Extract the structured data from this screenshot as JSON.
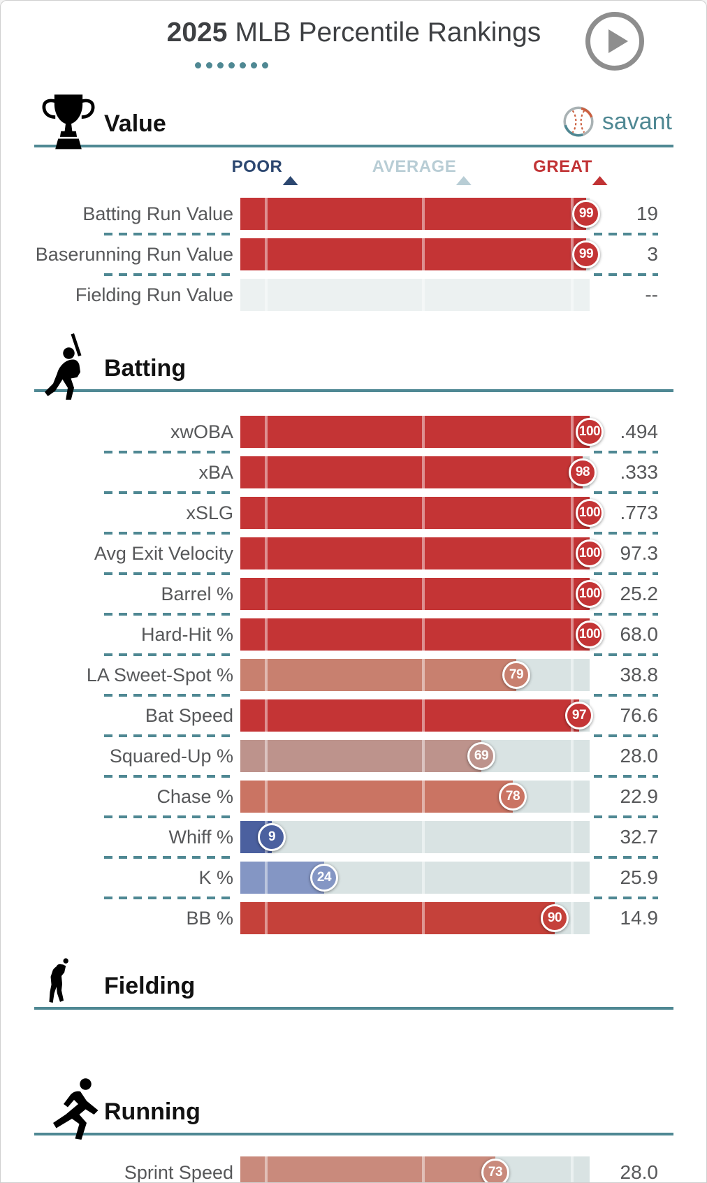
{
  "header": {
    "title_year": "2025",
    "title_rest": "MLB Percentile Rankings",
    "dots_count": 7
  },
  "branding": {
    "wordmark": "savant"
  },
  "legend": {
    "poor_label": "POOR",
    "average_label": "AVERAGE",
    "great_label": "GREAT",
    "poor_color": "#2c4770",
    "average_color": "#b8cdd5",
    "great_color": "#c13335",
    "positions_pct": {
      "poor": 7,
      "average": 52,
      "great": 94.5
    }
  },
  "colors": {
    "accent_teal": "#4f8893",
    "track": "#d9e3e3",
    "track_empty": "#ecf1f1",
    "bar_red": "#c43435"
  },
  "chart_data": {
    "type": "bar",
    "orientation": "horizontal",
    "title": "2025 MLB Percentile Rankings",
    "scale": [
      0,
      100
    ],
    "grid": false,
    "marker_positions_pct": {
      "poor": 7,
      "average": 52,
      "great": 94.5
    },
    "sections": [
      {
        "title": "Value",
        "icon": "trophy-icon",
        "rows": [
          {
            "label": "Batting Run Value",
            "percentile": 99,
            "value": "19",
            "color": "#c43435"
          },
          {
            "label": "Baserunning Run Value",
            "percentile": 99,
            "value": "3",
            "color": "#c43435"
          },
          {
            "label": "Fielding Run Value",
            "percentile": null,
            "value": "--",
            "color": null
          }
        ]
      },
      {
        "title": "Batting",
        "icon": "batter-icon",
        "rows": [
          {
            "label": "xwOBA",
            "percentile": 100,
            "value": ".494",
            "color": "#c43435"
          },
          {
            "label": "xBA",
            "percentile": 98,
            "value": ".333",
            "color": "#c43435"
          },
          {
            "label": "xSLG",
            "percentile": 100,
            "value": ".773",
            "color": "#c43435"
          },
          {
            "label": "Avg Exit Velocity",
            "percentile": 100,
            "value": "97.3",
            "color": "#c43435"
          },
          {
            "label": "Barrel %",
            "percentile": 100,
            "value": "25.2",
            "color": "#c43435"
          },
          {
            "label": "Hard-Hit %",
            "percentile": 100,
            "value": "68.0",
            "color": "#c43435"
          },
          {
            "label": "LA Sweet-Spot %",
            "percentile": 79,
            "value": "38.8",
            "color": "#c8806f"
          },
          {
            "label": "Bat Speed",
            "percentile": 97,
            "value": "76.6",
            "color": "#c43435"
          },
          {
            "label": "Squared-Up %",
            "percentile": 69,
            "value": "28.0",
            "color": "#bd938c"
          },
          {
            "label": "Chase %",
            "percentile": 78,
            "value": "22.9",
            "color": "#ca7463"
          },
          {
            "label": "Whiff %",
            "percentile": 9,
            "value": "32.7",
            "color": "#4b609f"
          },
          {
            "label": "K %",
            "percentile": 24,
            "value": "25.9",
            "color": "#8496c4"
          },
          {
            "label": "BB %",
            "percentile": 90,
            "value": "14.9",
            "color": "#c5413a"
          }
        ]
      },
      {
        "title": "Fielding",
        "icon": "fielder-icon",
        "rows": []
      },
      {
        "title": "Running",
        "icon": "runner-icon",
        "trailing_separator": true,
        "rows": [
          {
            "label": "Sprint Speed",
            "percentile": 73,
            "value": "28.0",
            "color": "#c98a7c"
          }
        ]
      }
    ]
  }
}
